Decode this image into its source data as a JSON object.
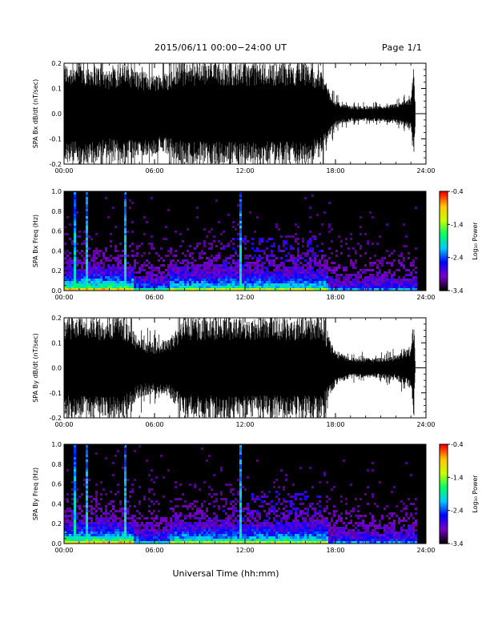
{
  "header": {
    "title": "2015/06/11  00:00−24:00 UT",
    "page": "Page 1/1"
  },
  "x_axis_title": "Universal Time (hh:mm)",
  "x_tick_labels": [
    "00:00",
    "06:00",
    "12:00",
    "18:00",
    "24:00"
  ],
  "colorbar": {
    "label": "Log₁₀ Power",
    "ticks": [
      "-0.4",
      "-1.4",
      "-2.4",
      "-3.4"
    ],
    "range": [
      -3.4,
      -0.4
    ],
    "colors": [
      "#000000",
      "#7a00c8",
      "#0000ff",
      "#00c8ff",
      "#00ff64",
      "#c8ff00",
      "#ffc800",
      "#ff0000"
    ]
  },
  "chart_data": [
    {
      "type": "line",
      "name": "panel-bx-waveform",
      "ylabel": "SPA Bx dB/dt (nT/sec)",
      "xlim_hours": [
        0,
        24
      ],
      "ylim": [
        -0.2,
        0.2
      ],
      "y_ticks": [
        "-0.2",
        "-0.1",
        "0.0",
        "0.1",
        "0.2"
      ],
      "amplitude_envelope": {
        "x_hours": [
          0,
          1,
          2,
          3,
          4,
          5,
          6,
          7,
          8,
          9,
          10,
          11,
          12,
          13,
          14,
          15,
          16,
          17,
          18,
          19,
          20,
          21,
          22,
          23,
          23.2,
          23.3,
          24
        ],
        "half_range": [
          0.2,
          0.2,
          0.2,
          0.17,
          0.2,
          0.17,
          0.16,
          0.17,
          0.2,
          0.2,
          0.2,
          0.2,
          0.2,
          0.2,
          0.2,
          0.2,
          0.2,
          0.17,
          0.05,
          0.03,
          0.03,
          0.03,
          0.04,
          0.06,
          0.2,
          0.0,
          0.0
        ]
      }
    },
    {
      "type": "heatmap",
      "name": "panel-bx-spectrogram",
      "ylabel": "SPA Bx Freq (Hz)",
      "xlim_hours": [
        0,
        24
      ],
      "ylim": [
        0,
        1.0
      ],
      "y_ticks": [
        "0.0",
        "0.2",
        "0.4",
        "0.6",
        "0.8",
        "1.0"
      ],
      "value_range": [
        -3.4,
        -0.4
      ],
      "bright_lines_hours": [
        0.6,
        1.5,
        4.0,
        11.7
      ]
    },
    {
      "type": "line",
      "name": "panel-by-waveform",
      "ylabel": "SPA By dB/dt (nT/sec)",
      "xlim_hours": [
        0,
        24
      ],
      "ylim": [
        -0.2,
        0.2
      ],
      "y_ticks": [
        "-0.2",
        "-0.1",
        "0.0",
        "0.1",
        "0.2"
      ],
      "amplitude_envelope": {
        "x_hours": [
          0,
          1,
          2,
          3,
          4,
          5,
          6,
          7,
          8,
          9,
          10,
          11,
          12,
          13,
          14,
          15,
          16,
          17,
          18,
          19,
          20,
          21,
          22,
          23,
          23.2,
          23.3,
          24
        ],
        "half_range": [
          0.2,
          0.2,
          0.2,
          0.2,
          0.2,
          0.12,
          0.1,
          0.12,
          0.2,
          0.2,
          0.2,
          0.2,
          0.2,
          0.2,
          0.2,
          0.2,
          0.2,
          0.2,
          0.07,
          0.04,
          0.04,
          0.04,
          0.05,
          0.08,
          0.2,
          0.0,
          0.0
        ]
      }
    },
    {
      "type": "heatmap",
      "name": "panel-by-spectrogram",
      "ylabel": "SPA By Freq (Hz)",
      "xlim_hours": [
        0,
        24
      ],
      "ylim": [
        0,
        1.0
      ],
      "y_ticks": [
        "0.0",
        "0.2",
        "0.4",
        "0.6",
        "0.8",
        "1.0"
      ],
      "value_range": [
        -3.4,
        -0.4
      ],
      "bright_lines_hours": [
        0.6,
        1.5,
        4.0,
        11.7
      ]
    }
  ]
}
